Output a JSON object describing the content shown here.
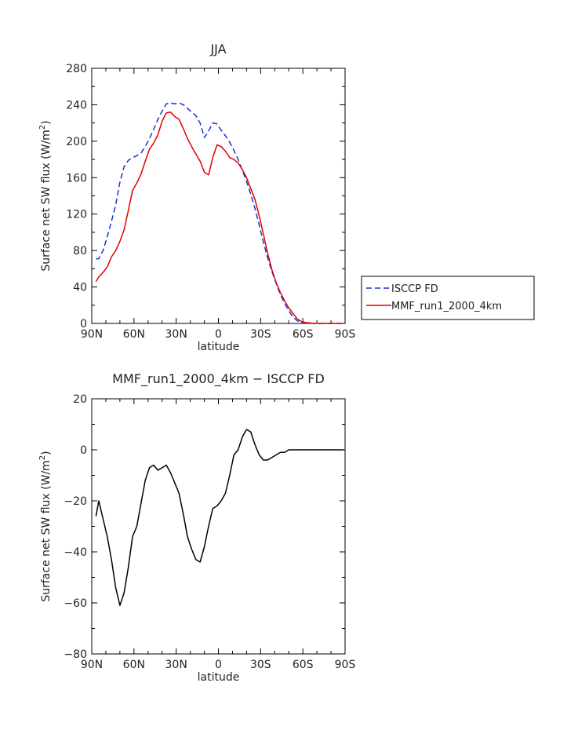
{
  "chart_data": [
    {
      "type": "line",
      "title": "JJA",
      "xlabel": "latitude",
      "ylabel_main": "Surface net SW flux (W/m",
      "ylabel_sup": "2",
      "ylabel_close": ")",
      "xlim": [
        -90,
        90
      ],
      "ylim": [
        0,
        280
      ],
      "xticks": [
        -90,
        -60,
        -30,
        0,
        30,
        60,
        90
      ],
      "xtick_labels": [
        "90N",
        "60N",
        "30N",
        "0",
        "30S",
        "60S",
        "90S"
      ],
      "yticks": [
        0,
        40,
        80,
        120,
        160,
        200,
        240,
        280
      ],
      "ytick_labels": [
        "0",
        "40",
        "80",
        "120",
        "160",
        "200",
        "240",
        "280"
      ],
      "legend_position": "right",
      "grid": false,
      "series": [
        {
          "name": "ISCCP FD",
          "color": "#1a2fd6",
          "style": "dashed",
          "x": [
            -87,
            -85,
            -82,
            -79,
            -76,
            -73,
            -70,
            -67,
            -64,
            -61,
            -58,
            -55,
            -52,
            -49,
            -46,
            -43,
            -40,
            -37,
            -34,
            -31,
            -28,
            -25,
            -22,
            -19,
            -16,
            -13,
            -10,
            -7,
            -4,
            -1,
            2,
            5,
            8,
            11,
            14,
            17,
            20,
            23,
            26,
            29,
            32,
            35,
            38,
            41,
            44,
            47,
            50,
            53,
            56,
            59,
            62,
            65,
            68,
            71,
            74,
            77,
            80,
            83,
            86,
            89
          ],
          "y": [
            71,
            71,
            80,
            95,
            112,
            130,
            155,
            172,
            179,
            182,
            184,
            187,
            194,
            203,
            213,
            224,
            233,
            241,
            242,
            241,
            242,
            240,
            236,
            232,
            228,
            220,
            204,
            211,
            220,
            219,
            212,
            206,
            199,
            190,
            180,
            168,
            156,
            142,
            126,
            108,
            89,
            72,
            57,
            44,
            32,
            22,
            14,
            7,
            3,
            1,
            0.5,
            0.2,
            0,
            0,
            0,
            0,
            0,
            0,
            0,
            0
          ]
        },
        {
          "name": "MMF_run1_2000_4km",
          "color": "#e00000",
          "style": "solid",
          "x": [
            -87,
            -85,
            -82,
            -79,
            -76,
            -73,
            -70,
            -67,
            -64,
            -61,
            -58,
            -55,
            -52,
            -49,
            -46,
            -43,
            -40,
            -37,
            -34,
            -31,
            -28,
            -25,
            -22,
            -19,
            -16,
            -13,
            -10,
            -7,
            -4,
            -1,
            2,
            5,
            8,
            11,
            14,
            17,
            20,
            23,
            26,
            29,
            32,
            35,
            38,
            41,
            44,
            47,
            50,
            53,
            56,
            59,
            62,
            65,
            68,
            71,
            74,
            77,
            80,
            83,
            86,
            89
          ],
          "y": [
            46,
            51,
            56,
            62,
            73,
            80,
            90,
            103,
            124,
            146,
            154,
            164,
            178,
            191,
            198,
            207,
            222,
            231,
            232,
            227,
            224,
            214,
            203,
            194,
            186,
            178,
            166,
            163,
            182,
            196,
            194,
            189,
            182,
            180,
            176,
            169,
            160,
            148,
            136,
            118,
            98,
            77,
            59,
            45,
            34,
            25,
            17,
            11,
            5,
            2,
            1,
            0.5,
            0,
            0,
            0,
            0,
            0,
            0,
            0,
            0
          ]
        }
      ]
    },
    {
      "type": "line",
      "title": "MMF_run1_2000_4km − ISCCP FD",
      "xlabel": "latitude",
      "ylabel_main": "Surface net SW flux (W/m",
      "ylabel_sup": "2",
      "ylabel_close": ")",
      "xlim": [
        -90,
        90
      ],
      "ylim": [
        -80,
        20
      ],
      "xticks": [
        -90,
        -60,
        -30,
        0,
        30,
        60,
        90
      ],
      "xtick_labels": [
        "90N",
        "60N",
        "30N",
        "0",
        "30S",
        "60S",
        "90S"
      ],
      "yticks": [
        -80,
        -60,
        -40,
        -20,
        0,
        20
      ],
      "ytick_labels": [
        "−80",
        "−60",
        "−40",
        "−20",
        "0",
        "20"
      ],
      "grid": false,
      "series": [
        {
          "color": "#000000",
          "style": "solid",
          "x": [
            -87,
            -85,
            -82,
            -79,
            -76,
            -73,
            -70,
            -67,
            -64,
            -61,
            -58,
            -55,
            -52,
            -49,
            -46,
            -43,
            -40,
            -37,
            -34,
            -31,
            -28,
            -25,
            -22,
            -19,
            -16,
            -13,
            -10,
            -7,
            -4,
            -1,
            2,
            5,
            8,
            11,
            14,
            17,
            20,
            23,
            26,
            29,
            32,
            35,
            38,
            41,
            44,
            47,
            50,
            53,
            56,
            59,
            62,
            65,
            68,
            71,
            74,
            77,
            80,
            83,
            86,
            89
          ],
          "y": [
            -26,
            -20,
            -27,
            -34,
            -43,
            -54,
            -61,
            -56,
            -46,
            -34,
            -30,
            -21,
            -12,
            -7,
            -6,
            -8,
            -7,
            -6,
            -9,
            -13,
            -17,
            -25,
            -34,
            -39,
            -43,
            -44,
            -38,
            -30,
            -23,
            -22,
            -20,
            -17,
            -10,
            -2,
            0,
            5,
            8,
            7,
            2,
            -2,
            -4,
            -4,
            -3,
            -2,
            -1,
            -1,
            0,
            0,
            0,
            0,
            0,
            0,
            0,
            0,
            0,
            0,
            0,
            0,
            0,
            0
          ]
        }
      ]
    }
  ]
}
